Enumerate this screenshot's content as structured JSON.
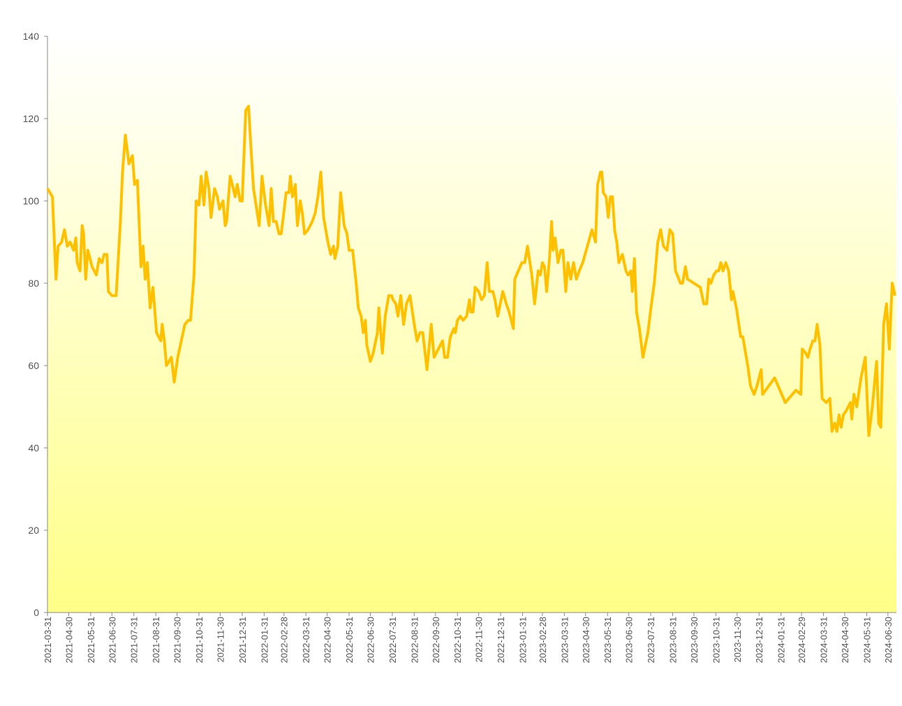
{
  "chart_data": {
    "type": "line",
    "color": "#ffc000",
    "x": [
      "2021-03-31",
      "2021-04-07",
      "2021-04-12",
      "2021-04-15",
      "2021-04-20",
      "2021-04-24",
      "2021-04-28",
      "2021-05-02",
      "2021-05-07",
      "2021-05-10",
      "2021-05-12",
      "2021-05-16",
      "2021-05-19",
      "2021-05-21",
      "2021-05-24",
      "2021-05-27",
      "2021-06-02",
      "2021-06-08",
      "2021-06-12",
      "2021-06-16",
      "2021-06-19",
      "2021-06-23",
      "2021-06-25",
      "2021-06-30",
      "2021-07-06",
      "2021-07-12",
      "2021-07-15",
      "2021-07-19",
      "2021-07-24",
      "2021-07-29",
      "2021-08-01",
      "2021-08-05",
      "2021-08-10",
      "2021-08-13",
      "2021-08-16",
      "2021-08-19",
      "2021-08-23",
      "2021-08-27",
      "2021-09-01",
      "2021-09-07",
      "2021-09-09",
      "2021-09-12",
      "2021-09-15",
      "2021-09-22",
      "2021-09-26",
      "2021-10-01",
      "2021-10-11",
      "2021-10-16",
      "2021-10-19",
      "2021-10-24",
      "2021-10-27",
      "2021-10-31",
      "2021-11-03",
      "2021-11-07",
      "2021-11-10",
      "2021-11-14",
      "2021-11-17",
      "2021-11-22",
      "2021-11-26",
      "2021-11-29",
      "2021-12-04",
      "2021-12-07",
      "2021-12-09",
      "2021-12-14",
      "2021-12-17",
      "2021-12-21",
      "2021-12-24",
      "2021-12-28",
      "2021-12-31",
      "2022-01-05",
      "2022-01-09",
      "2022-01-12",
      "2022-01-16",
      "2022-01-24",
      "2022-01-28",
      "2022-02-02",
      "2022-02-07",
      "2022-02-10",
      "2022-02-13",
      "2022-02-17",
      "2022-02-21",
      "2022-02-24",
      "2022-02-27",
      "2022-03-03",
      "2022-03-07",
      "2022-03-09",
      "2022-03-12",
      "2022-03-16",
      "2022-03-19",
      "2022-03-23",
      "2022-03-26",
      "2022-03-29",
      "2022-04-03",
      "2022-04-09",
      "2022-04-13",
      "2022-04-17",
      "2022-04-21",
      "2022-04-25",
      "2022-05-01",
      "2022-05-05",
      "2022-05-09",
      "2022-05-11",
      "2022-05-15",
      "2022-05-19",
      "2022-05-24",
      "2022-05-28",
      "2022-05-31",
      "2022-06-05",
      "2022-06-10",
      "2022-06-13",
      "2022-06-17",
      "2022-06-20",
      "2022-06-23",
      "2022-06-25",
      "2022-06-30",
      "2022-07-04",
      "2022-07-10",
      "2022-07-12",
      "2022-07-17",
      "2022-07-21",
      "2022-07-26",
      "2022-07-30",
      "2022-08-01",
      "2022-08-05",
      "2022-08-08",
      "2022-08-12",
      "2022-08-16",
      "2022-08-20",
      "2022-08-25",
      "2022-08-31",
      "2022-09-04",
      "2022-09-08",
      "2022-09-12",
      "2022-09-18",
      "2022-09-24",
      "2022-09-28",
      "2022-10-04",
      "2022-10-10",
      "2022-10-13",
      "2022-10-17",
      "2022-10-21",
      "2022-10-26",
      "2022-10-28",
      "2022-10-31",
      "2022-11-04",
      "2022-11-08",
      "2022-11-13",
      "2022-11-17",
      "2022-11-19",
      "2022-11-22",
      "2022-11-25",
      "2022-11-30",
      "2022-12-04",
      "2022-12-08",
      "2022-12-12",
      "2022-12-15",
      "2022-12-20",
      "2022-12-23",
      "2022-12-27",
      "2023-01-03",
      "2023-01-08",
      "2023-01-12",
      "2023-01-18",
      "2023-01-20",
      "2023-01-30",
      "2023-02-03",
      "2023-02-07",
      "2023-02-13",
      "2023-02-17",
      "2023-02-22",
      "2023-02-25",
      "2023-02-28",
      "2023-03-03",
      "2023-03-06",
      "2023-03-10",
      "2023-03-13",
      "2023-03-15",
      "2023-03-18",
      "2023-03-22",
      "2023-03-26",
      "2023-03-29",
      "2023-04-02",
      "2023-04-05",
      "2023-04-09",
      "2023-04-13",
      "2023-04-17",
      "2023-04-21",
      "2023-04-26",
      "2023-05-09",
      "2023-05-14",
      "2023-05-17",
      "2023-05-21",
      "2023-05-23",
      "2023-05-25",
      "2023-05-29",
      "2023-06-01",
      "2023-06-04",
      "2023-06-07",
      "2023-06-10",
      "2023-06-13",
      "2023-06-16",
      "2023-06-21",
      "2023-06-26",
      "2023-06-29",
      "2023-07-03",
      "2023-07-05",
      "2023-07-08",
      "2023-07-11",
      "2023-07-15",
      "2023-07-20",
      "2023-07-27",
      "2023-08-01",
      "2023-08-05",
      "2023-08-10",
      "2023-08-14",
      "2023-08-18",
      "2023-08-23",
      "2023-08-27",
      "2023-08-31",
      "2023-09-04",
      "2023-09-11",
      "2023-09-14",
      "2023-09-18",
      "2023-09-21",
      "2023-10-09",
      "2023-10-14",
      "2023-10-18",
      "2023-10-21",
      "2023-10-24",
      "2023-10-28",
      "2023-11-01",
      "2023-11-04",
      "2023-11-07",
      "2023-11-10",
      "2023-11-14",
      "2023-11-18",
      "2023-11-22",
      "2023-11-24",
      "2023-11-29",
      "2023-12-05",
      "2023-12-08",
      "2023-12-15",
      "2023-12-19",
      "2023-12-24",
      "2023-12-28",
      "2024-01-03",
      "2024-01-05",
      "2024-01-22",
      "2024-02-06",
      "2024-02-21",
      "2024-02-28",
      "2024-03-01",
      "2024-03-06",
      "2024-03-09",
      "2024-03-12",
      "2024-03-16",
      "2024-03-19",
      "2024-03-22",
      "2024-03-26",
      "2024-03-29",
      "2024-04-04",
      "2024-04-09",
      "2024-04-12",
      "2024-04-16",
      "2024-04-19",
      "2024-04-22",
      "2024-04-25",
      "2024-04-28",
      "2024-05-02",
      "2024-05-05",
      "2024-05-08",
      "2024-05-10",
      "2024-05-13",
      "2024-05-17",
      "2024-05-23",
      "2024-05-29",
      "2024-06-03",
      "2024-06-08",
      "2024-06-14",
      "2024-06-17",
      "2024-06-20",
      "2024-06-24",
      "2024-06-28",
      "2024-07-02",
      "2024-07-06",
      "2024-07-10"
    ],
    "values": [
      103,
      101,
      81,
      89,
      90,
      93,
      89,
      90,
      88,
      91,
      85,
      83,
      94,
      92,
      81,
      88,
      84,
      82,
      86,
      85,
      87,
      87,
      78,
      77,
      77,
      95,
      107,
      116,
      109,
      111,
      104,
      105,
      84,
      89,
      81,
      85,
      74,
      79,
      68,
      66,
      70,
      66,
      60,
      62,
      56,
      62,
      70,
      71,
      71,
      82,
      100,
      99,
      106,
      99,
      107,
      103,
      96,
      103,
      101,
      98,
      100,
      94,
      95,
      106,
      104,
      101,
      104,
      100,
      100,
      122,
      123,
      114,
      103,
      94,
      106,
      99,
      94,
      103,
      95,
      95,
      92,
      92,
      96,
      102,
      102,
      106,
      101,
      104,
      94,
      100,
      97,
      92,
      93,
      95,
      97,
      101,
      107,
      96,
      90,
      87,
      89,
      86,
      89,
      102,
      94,
      92,
      88,
      88,
      80,
      74,
      72,
      68,
      71,
      65,
      61,
      63,
      68,
      74,
      63,
      72,
      77,
      77,
      76,
      75,
      72,
      77,
      70,
      75,
      77,
      70,
      66,
      68,
      68,
      59,
      70,
      62,
      64,
      66,
      62,
      62,
      67,
      69,
      68,
      71,
      72,
      71,
      72,
      76,
      73,
      73,
      79,
      78,
      76,
      77,
      85,
      78,
      78,
      76,
      72,
      78,
      75,
      73,
      69,
      81,
      85,
      85,
      89,
      82,
      75,
      83,
      82,
      85,
      84,
      78,
      86,
      95,
      88,
      91,
      85,
      88,
      88,
      78,
      85,
      81,
      85,
      81,
      83,
      85,
      93,
      90,
      104,
      107,
      107,
      102,
      101,
      96,
      101,
      101,
      93,
      90,
      85,
      87,
      83,
      82,
      83,
      78,
      86,
      73,
      69,
      62,
      68,
      75,
      80,
      90,
      93,
      89,
      88,
      93,
      92,
      83,
      80,
      80,
      84,
      81,
      79,
      75,
      75,
      81,
      80,
      82,
      83,
      83,
      85,
      83,
      85,
      83,
      76,
      78,
      74,
      67,
      67,
      60,
      55,
      53,
      55,
      59,
      53,
      57,
      51,
      54,
      53,
      64,
      63,
      62,
      64,
      66,
      66,
      70,
      65,
      52,
      51,
      52,
      44,
      46,
      44,
      48,
      45,
      48,
      49,
      50,
      51,
      47,
      53,
      50,
      57,
      62,
      43,
      50,
      61,
      46,
      45,
      70,
      75,
      64,
      80,
      77
    ],
    "xlim": [
      "2021-03-31",
      "2024-07-12"
    ],
    "xticks": [
      "2021-03-31",
      "2021-04-30",
      "2021-05-31",
      "2021-06-30",
      "2021-07-31",
      "2021-08-31",
      "2021-09-30",
      "2021-10-31",
      "2021-11-30",
      "2021-12-31",
      "2022-01-31",
      "2022-02-28",
      "2022-03-31",
      "2022-04-30",
      "2022-05-31",
      "2022-06-30",
      "2022-07-31",
      "2022-08-31",
      "2022-09-30",
      "2022-10-31",
      "2022-11-30",
      "2022-12-31",
      "2023-01-31",
      "2023-02-28",
      "2023-03-31",
      "2023-04-30",
      "2023-05-31",
      "2023-06-30",
      "2023-07-31",
      "2023-08-31",
      "2023-09-30",
      "2023-10-31",
      "2023-11-30",
      "2023-12-31",
      "2024-01-31",
      "2024-02-29",
      "2024-03-31",
      "2024-04-30",
      "2024-05-31",
      "2024-06-30"
    ],
    "ylim": [
      0,
      140
    ],
    "yticks": [
      0,
      20,
      40,
      60,
      80,
      100,
      120,
      140
    ]
  }
}
